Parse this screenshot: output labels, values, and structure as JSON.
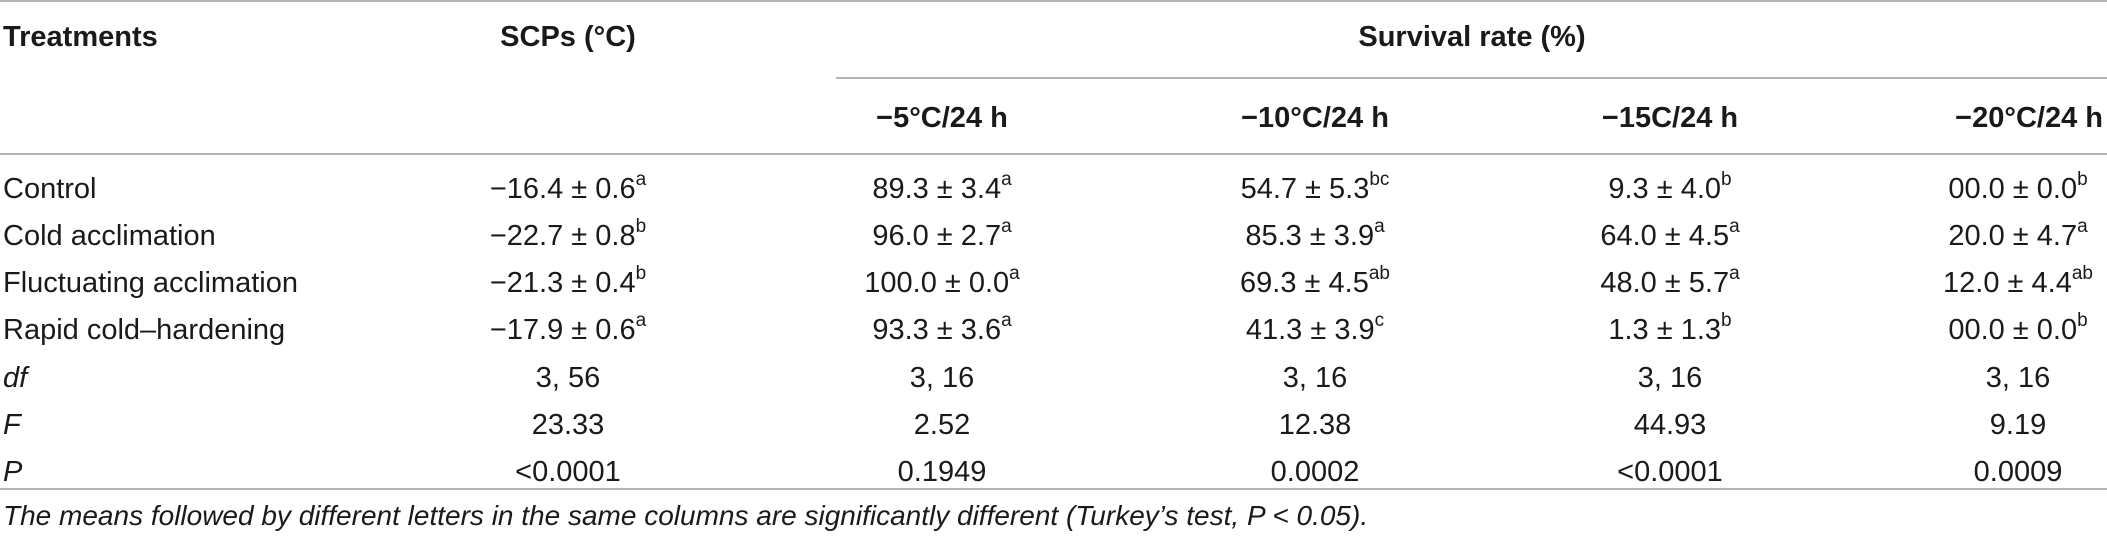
{
  "table": {
    "header": {
      "treatments": "Treatments",
      "scps": "SCPs (°C)",
      "survival_group": "Survival rate (%)",
      "sub_cols": [
        "−5°C/24 h",
        "−10°C/24 h",
        "−15C/24 h",
        "−20°C/24 h"
      ]
    },
    "rows": [
      {
        "label": "Control",
        "scp": {
          "v": "−16.4 ± 0.6",
          "s": "a"
        },
        "c1": {
          "v": "89.3 ± 3.4",
          "s": "a"
        },
        "c2": {
          "v": "54.7 ± 5.3",
          "s": "bc"
        },
        "c3": {
          "v": "9.3 ± 4.0",
          "s": "b"
        },
        "c4": {
          "v": "00.0 ± 0.0",
          "s": "b"
        }
      },
      {
        "label": "Cold acclimation",
        "scp": {
          "v": "−22.7 ± 0.8",
          "s": "b"
        },
        "c1": {
          "v": "96.0 ± 2.7",
          "s": "a"
        },
        "c2": {
          "v": "85.3 ± 3.9",
          "s": "a"
        },
        "c3": {
          "v": "64.0 ± 4.5",
          "s": "a"
        },
        "c4": {
          "v": "20.0 ± 4.7",
          "s": "a"
        }
      },
      {
        "label": "Fluctuating acclimation",
        "scp": {
          "v": "−21.3 ± 0.4",
          "s": "b"
        },
        "c1": {
          "v": "100.0 ± 0.0",
          "s": "a"
        },
        "c2": {
          "v": "69.3 ± 4.5",
          "s": "ab"
        },
        "c3": {
          "v": "48.0 ± 5.7",
          "s": "a"
        },
        "c4": {
          "v": "12.0 ± 4.4",
          "s": "ab"
        }
      },
      {
        "label": "Rapid cold–hardening",
        "scp": {
          "v": "−17.9 ± 0.6",
          "s": "a"
        },
        "c1": {
          "v": "93.3 ± 3.6",
          "s": "a"
        },
        "c2": {
          "v": "41.3 ± 3.9",
          "s": "c"
        },
        "c3": {
          "v": "1.3 ± 1.3",
          "s": "b"
        },
        "c4": {
          "v": "00.0 ± 0.0",
          "s": "b"
        }
      }
    ],
    "stats": [
      {
        "label": "df",
        "values": [
          "3, 56",
          "3, 16",
          "3, 16",
          "3, 16",
          "3, 16"
        ]
      },
      {
        "label": "F",
        "values": [
          "23.33",
          "2.52",
          "12.38",
          "44.93",
          "9.19"
        ]
      },
      {
        "label": "P",
        "values": [
          "<0.0001",
          "0.1949",
          "0.0002",
          "<0.0001",
          "0.0009"
        ]
      }
    ]
  },
  "footnote": "The means followed by different letters in the same columns are significantly different (Turkey’s test, P < 0.05)."
}
